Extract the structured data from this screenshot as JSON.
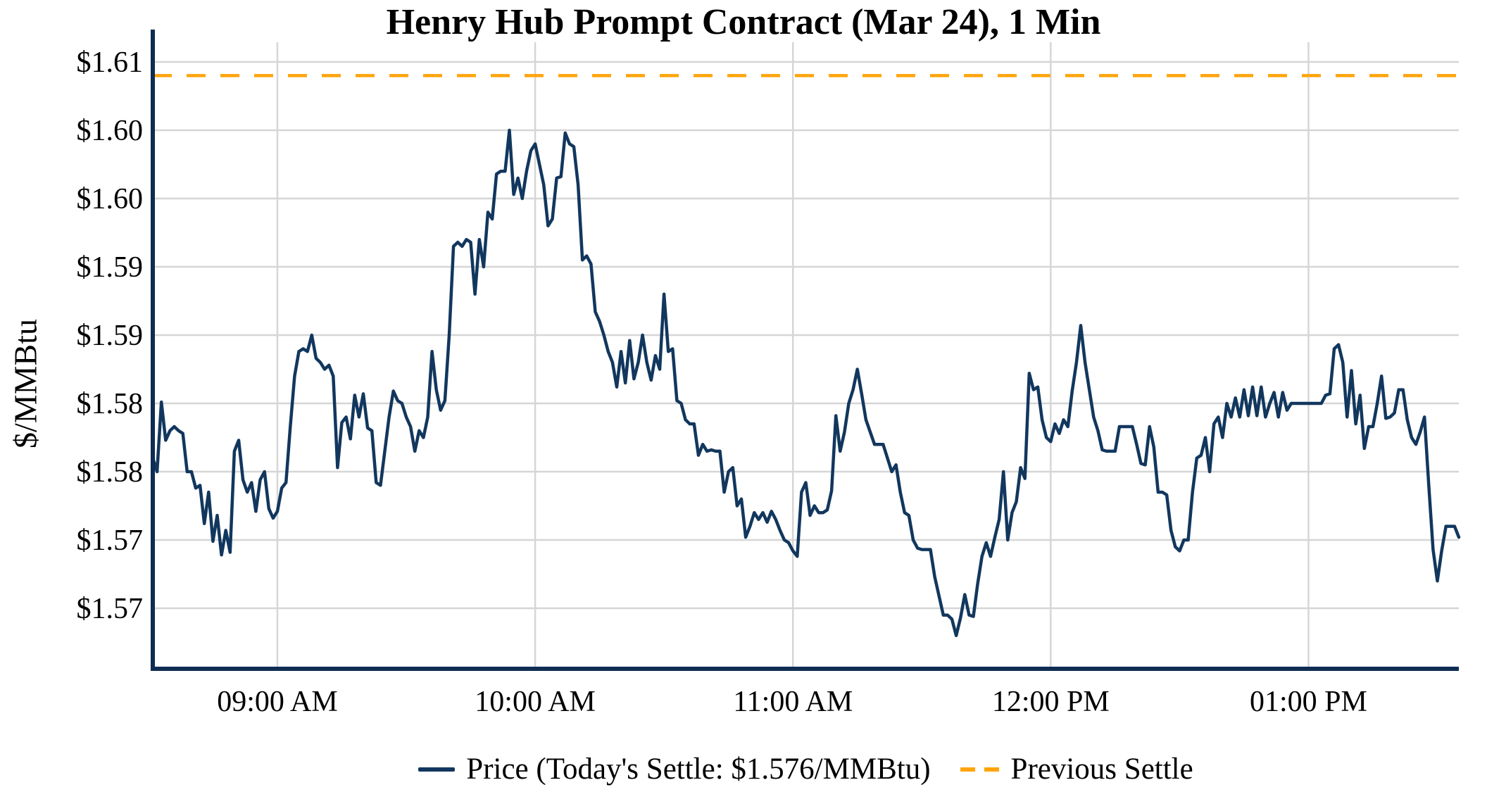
{
  "title": "Henry Hub Prompt Contract (Mar 24), 1 Min",
  "y_axis_label": "$/MMBtu",
  "legend": {
    "price_label": "Price (Today's Settle: $1.576/MMBtu)",
    "previous_settle_label": "Previous Settle"
  },
  "colors": {
    "price_line": "#12375E",
    "previous_settle_line": "#FFA40B",
    "axis": "#0E2D52",
    "gridline": "#D6D6D6",
    "text": "#000000",
    "background": "#FFFFFF"
  },
  "chart_data": {
    "type": "line",
    "title": "Henry Hub Prompt Contract (Mar 24), 1 Min",
    "xlabel": "",
    "ylabel": "$/MMBtu",
    "grid": true,
    "legend_position": "bottom",
    "x_start_time": "08:31",
    "x_end_time": "13:35",
    "interval_minutes": 1,
    "x_ticks": [
      {
        "time": "09:00",
        "label": "09:00 AM"
      },
      {
        "time": "10:00",
        "label": "10:00 AM"
      },
      {
        "time": "11:00",
        "label": "11:00 AM"
      },
      {
        "time": "12:00",
        "label": "12:00 PM"
      },
      {
        "time": "13:00",
        "label": "01:00 PM"
      }
    ],
    "y_ticks": [
      {
        "value": 1.61,
        "label": "$1.61"
      },
      {
        "value": 1.605,
        "label": "$1.60"
      },
      {
        "value": 1.6,
        "label": "$1.60"
      },
      {
        "value": 1.595,
        "label": "$1.59"
      },
      {
        "value": 1.59,
        "label": "$1.59"
      },
      {
        "value": 1.585,
        "label": "$1.58"
      },
      {
        "value": 1.58,
        "label": "$1.58"
      },
      {
        "value": 1.575,
        "label": "$1.57"
      },
      {
        "value": 1.57,
        "label": "$1.57"
      }
    ],
    "ylim": [
      1.5656,
      1.6114
    ],
    "previous_settle": 1.609,
    "todays_settle": 1.576,
    "series": [
      {
        "name": "Price",
        "values": [
          1.581,
          1.58,
          1.5851,
          1.5823,
          1.583,
          1.5833,
          1.583,
          1.5828,
          1.58,
          1.58,
          1.5788,
          1.579,
          1.5762,
          1.5785,
          1.5749,
          1.5768,
          1.5739,
          1.5757,
          1.5741,
          1.5815,
          1.5823,
          1.5794,
          1.5785,
          1.5792,
          1.5771,
          1.5794,
          1.58,
          1.5773,
          1.5766,
          1.5771,
          1.5788,
          1.5792,
          1.5833,
          1.587,
          1.5888,
          1.589,
          1.5888,
          1.59,
          1.5883,
          1.588,
          1.5875,
          1.5878,
          1.587,
          1.5803,
          1.5836,
          1.584,
          1.5824,
          1.5856,
          1.584,
          1.5857,
          1.5832,
          1.583,
          1.5792,
          1.579,
          1.5815,
          1.584,
          1.5859,
          1.5852,
          1.585,
          1.584,
          1.5833,
          1.5815,
          1.583,
          1.5825,
          1.584,
          1.5888,
          1.586,
          1.5845,
          1.5852,
          1.59,
          1.5965,
          1.5968,
          1.5965,
          1.597,
          1.5968,
          1.593,
          1.597,
          1.595,
          1.599,
          1.5985,
          1.6018,
          1.602,
          1.602,
          1.605,
          1.6003,
          1.6015,
          1.6,
          1.602,
          1.6035,
          1.604,
          1.6025,
          1.601,
          1.598,
          1.5985,
          1.6015,
          1.6016,
          1.6048,
          1.604,
          1.6038,
          1.601,
          1.5955,
          1.5958,
          1.5952,
          1.5917,
          1.591,
          1.59,
          1.5888,
          1.588,
          1.5862,
          1.5888,
          1.5865,
          1.5896,
          1.5868,
          1.588,
          1.59,
          1.588,
          1.5867,
          1.5885,
          1.5875,
          1.593,
          1.5888,
          1.589,
          1.5852,
          1.585,
          1.5838,
          1.5835,
          1.5835,
          1.5812,
          1.582,
          1.5815,
          1.5816,
          1.5815,
          1.5815,
          1.5785,
          1.58,
          1.5803,
          1.5775,
          1.578,
          1.5752,
          1.576,
          1.577,
          1.5765,
          1.577,
          1.5763,
          1.5771,
          1.5765,
          1.5757,
          1.575,
          1.5748,
          1.5742,
          1.5738,
          1.5785,
          1.5792,
          1.5768,
          1.5775,
          1.577,
          1.577,
          1.5772,
          1.5786,
          1.5841,
          1.5815,
          1.5829,
          1.585,
          1.586,
          1.5875,
          1.5857,
          1.5838,
          1.5829,
          1.582,
          1.582,
          1.582,
          1.581,
          1.58,
          1.5805,
          1.5785,
          1.577,
          1.5768,
          1.575,
          1.5744,
          1.5743,
          1.5743,
          1.5743,
          1.5723,
          1.5709,
          1.5695,
          1.5695,
          1.5692,
          1.568,
          1.5693,
          1.571,
          1.5695,
          1.5694,
          1.5718,
          1.5738,
          1.5748,
          1.5738,
          1.5752,
          1.5765,
          1.58,
          1.575,
          1.577,
          1.5778,
          1.5803,
          1.5795,
          1.5872,
          1.586,
          1.5862,
          1.5838,
          1.5825,
          1.5822,
          1.5835,
          1.5828,
          1.5838,
          1.5833,
          1.5859,
          1.588,
          1.5907,
          1.588,
          1.586,
          1.584,
          1.583,
          1.5816,
          1.5815,
          1.5815,
          1.5815,
          1.5833,
          1.5833,
          1.5833,
          1.5833,
          1.582,
          1.5806,
          1.5805,
          1.5833,
          1.5818,
          1.5785,
          1.5785,
          1.5783,
          1.5757,
          1.5745,
          1.5742,
          1.575,
          1.575,
          1.5785,
          1.581,
          1.5812,
          1.5825,
          1.58,
          1.5835,
          1.584,
          1.5825,
          1.585,
          1.584,
          1.5854,
          1.584,
          1.586,
          1.5841,
          1.5862,
          1.5841,
          1.5862,
          1.584,
          1.585,
          1.5858,
          1.584,
          1.5858,
          1.5845,
          1.585,
          1.585,
          1.585,
          1.585,
          1.585,
          1.585,
          1.585,
          1.585,
          1.5856,
          1.5857,
          1.589,
          1.5893,
          1.588,
          1.584,
          1.5874,
          1.5835,
          1.5856,
          1.5817,
          1.5833,
          1.5833,
          1.585,
          1.587,
          1.5839,
          1.584,
          1.5843,
          1.586,
          1.586,
          1.5838,
          1.5825,
          1.582,
          1.5829,
          1.584,
          1.579,
          1.5743,
          1.572,
          1.5742,
          1.576,
          1.576,
          1.576,
          1.5752
        ]
      }
    ]
  }
}
